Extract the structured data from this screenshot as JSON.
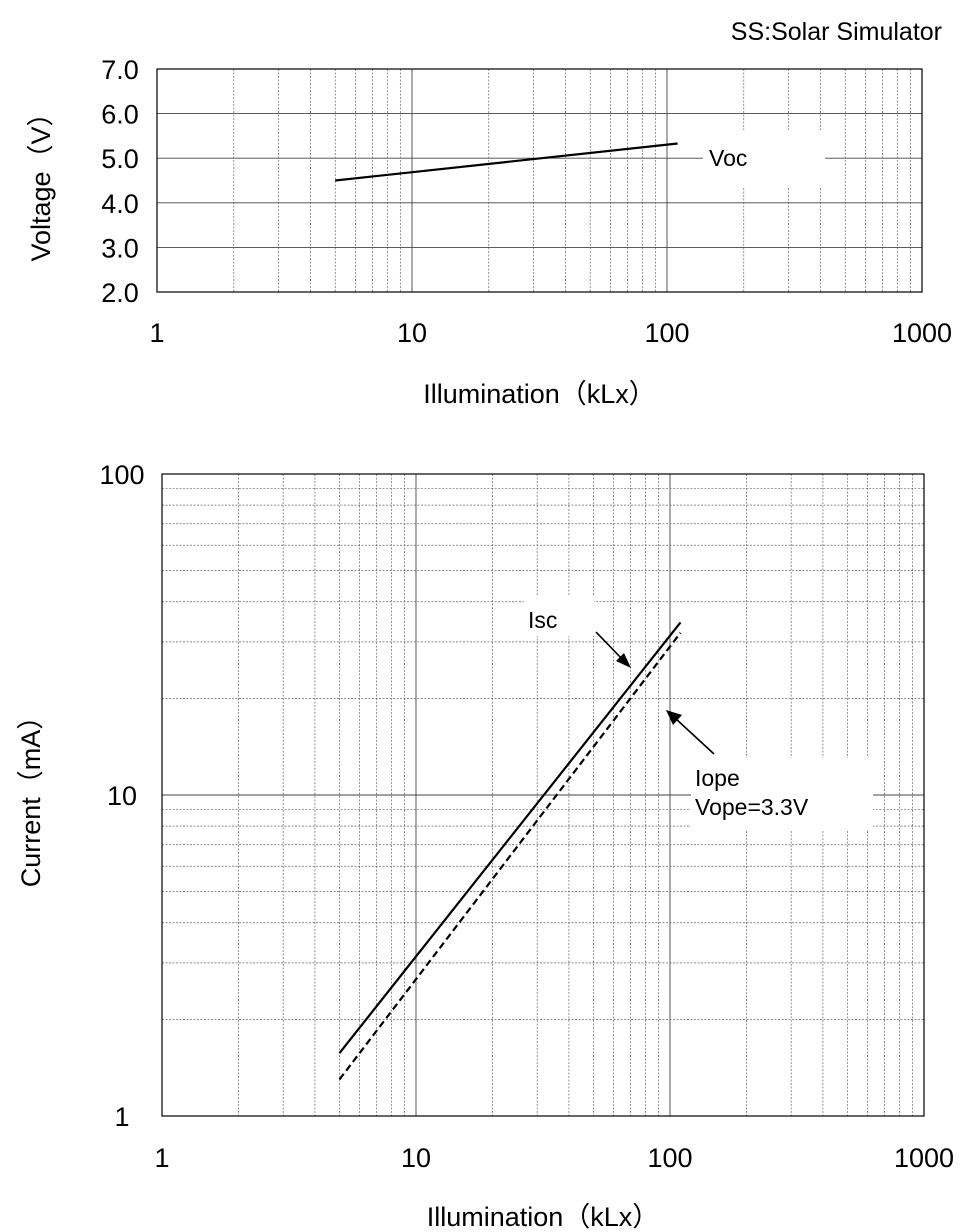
{
  "note": "SS:Solar Simulator",
  "chart_data": [
    {
      "type": "line",
      "xscale": "log",
      "xlim": [
        1,
        1000
      ],
      "ylim": [
        2.0,
        7.0
      ],
      "xlabel": "Illumination（kLx）",
      "ylabel": "Voltage（V）",
      "xticks": [
        "1",
        "10",
        "100",
        "1000"
      ],
      "yticks": [
        "7.0",
        "6.0",
        "5.0",
        "4.0",
        "3.0",
        "2.0"
      ],
      "grid": true,
      "series": [
        {
          "name": "Voc",
          "style": "solid",
          "x": [
            5,
            110
          ],
          "y": [
            4.5,
            5.33
          ]
        }
      ]
    },
    {
      "type": "line",
      "xscale": "log",
      "yscale": "log",
      "xlim": [
        1,
        1000
      ],
      "ylim": [
        1,
        100
      ],
      "xlabel": "Illumination（kLx）",
      "ylabel": "Current（mA）",
      "xticks": [
        "1",
        "10",
        "100",
        "1000"
      ],
      "yticks": [
        "100",
        "10",
        "1"
      ],
      "grid": true,
      "series": [
        {
          "name": "Isc",
          "style": "solid",
          "x": [
            5,
            110
          ],
          "y": [
            1.57,
            34.5
          ]
        },
        {
          "name": "Iope",
          "style": "dashed",
          "x": [
            5,
            110
          ],
          "y": [
            1.3,
            32.0
          ]
        }
      ],
      "annotations": [
        "Isc",
        "Iope",
        "Vope=3.3V"
      ]
    }
  ]
}
